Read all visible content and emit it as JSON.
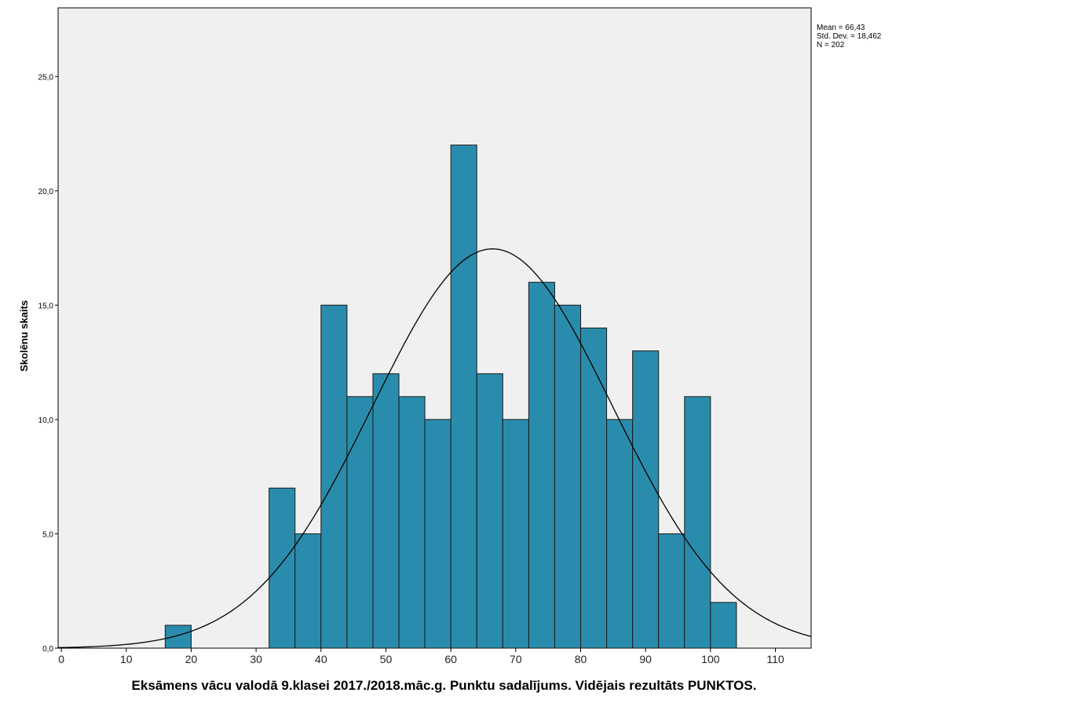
{
  "chart_data": {
    "type": "bar",
    "subtype": "histogram-with-normal-curve",
    "title": "",
    "xlabel": "Eksāmens vācu valodā 9.klasei 2017./2018.māc.g. Punktu sadalījums. Vidējais rezultāts PUNKTOS.",
    "ylabel": "Skolēnu skaits",
    "xlim": [
      -0.5,
      115.5
    ],
    "ylim": [
      0,
      28
    ],
    "x_ticks": [
      0,
      10,
      20,
      30,
      40,
      50,
      60,
      70,
      80,
      90,
      100,
      110
    ],
    "x_tick_labels": [
      "0",
      "10",
      "20",
      "30",
      "40",
      "50",
      "60",
      "70",
      "80",
      "90",
      "100",
      "110"
    ],
    "y_ticks": [
      0,
      5,
      10,
      15,
      20,
      25
    ],
    "y_tick_labels": [
      "0,0",
      "5,0",
      "10,0",
      "15,0",
      "20,0",
      "25,0"
    ],
    "bin_width": 4,
    "bins": [
      {
        "start": 16,
        "end": 20,
        "count": 1
      },
      {
        "start": 32,
        "end": 36,
        "count": 7
      },
      {
        "start": 36,
        "end": 40,
        "count": 5
      },
      {
        "start": 40,
        "end": 44,
        "count": 15
      },
      {
        "start": 44,
        "end": 48,
        "count": 11
      },
      {
        "start": 48,
        "end": 52,
        "count": 12
      },
      {
        "start": 52,
        "end": 56,
        "count": 11
      },
      {
        "start": 56,
        "end": 60,
        "count": 10
      },
      {
        "start": 60,
        "end": 64,
        "count": 22
      },
      {
        "start": 64,
        "end": 68,
        "count": 12
      },
      {
        "start": 68,
        "end": 72,
        "count": 10
      },
      {
        "start": 72,
        "end": 76,
        "count": 16
      },
      {
        "start": 76,
        "end": 80,
        "count": 15
      },
      {
        "start": 80,
        "end": 84,
        "count": 14
      },
      {
        "start": 84,
        "end": 88,
        "count": 10
      },
      {
        "start": 88,
        "end": 92,
        "count": 13
      },
      {
        "start": 92,
        "end": 96,
        "count": 5
      },
      {
        "start": 96,
        "end": 100,
        "count": 11
      },
      {
        "start": 100,
        "end": 104,
        "count": 2
      }
    ],
    "normal_curve": {
      "mean": 66.43,
      "std_dev": 18.462,
      "n": 202
    },
    "stats_labels": [
      "Mean = 66,43",
      "Std. Dev. = 18,462",
      "N = 202"
    ],
    "grid": false,
    "legend": "none"
  },
  "colors": {
    "plot_background": "#f0f0f0",
    "bar_fill": "#2a8cac",
    "bar_stroke": "#1a1a1a",
    "curve": "#000000",
    "axis": "#000000"
  }
}
